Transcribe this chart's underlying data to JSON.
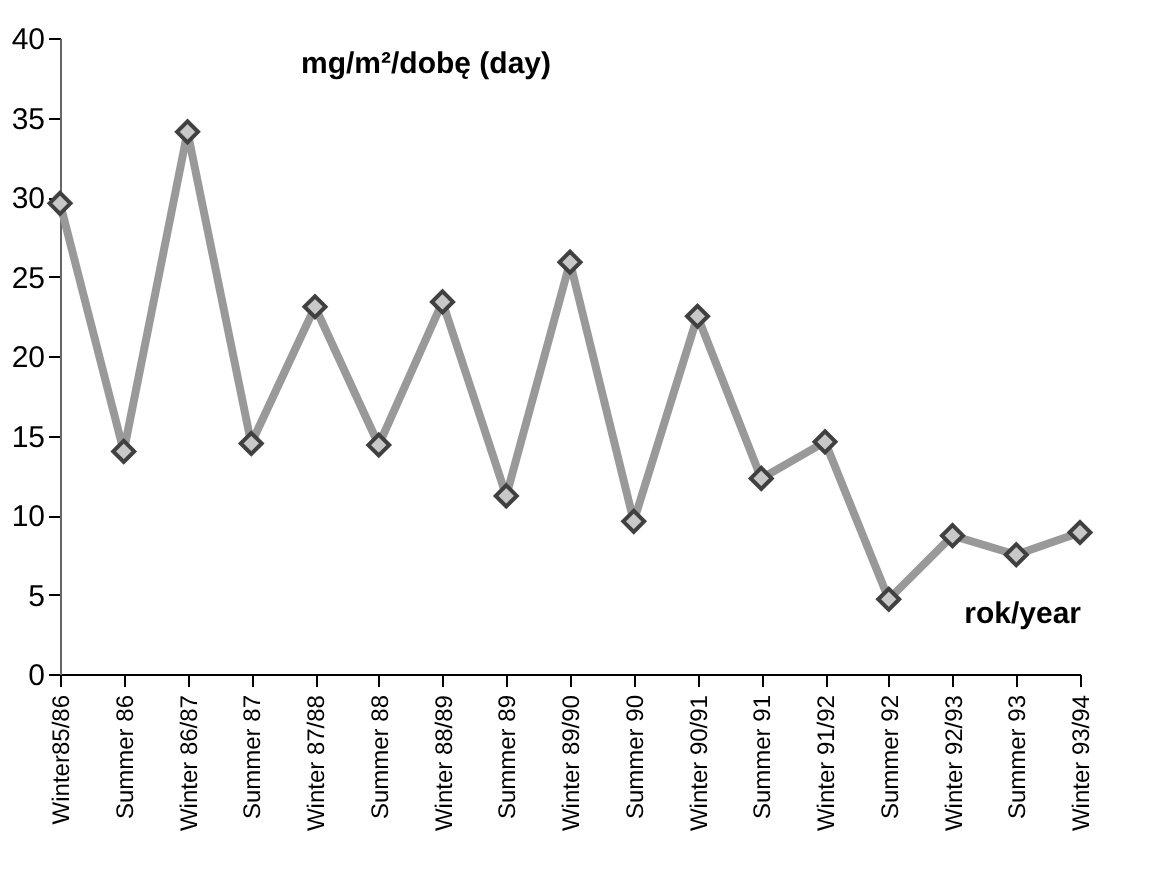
{
  "chart_data": {
    "type": "line",
    "ylabel": "mg/m²/dobę (day)",
    "xlabel": "rok/year",
    "categories": [
      "Winter85/86",
      "Summer 86",
      "Winter 86/87",
      "Summer 87",
      "Winter 87/88",
      "Summer 88",
      "Winter 88/89",
      "Summer 89",
      "Winter 89/90",
      "Summer 90",
      "Winter 90/91",
      "Summer 91",
      "Winter 91/92",
      "Summer 92",
      "Winter 92/93",
      "Summer 93",
      "Winter 93/94"
    ],
    "series": [
      {
        "color": "#999999",
        "values": [
          29.6,
          14.0,
          34.1,
          14.5,
          23.1,
          14.4,
          23.4,
          11.2,
          25.9,
          9.6,
          22.5,
          12.3,
          14.6,
          4.7,
          8.7,
          7.5,
          8.9
        ]
      }
    ],
    "ylim": [
      0,
      40
    ],
    "yticks": [
      0,
      5,
      10,
      15,
      20,
      25,
      30,
      35,
      40
    ],
    "grid": false,
    "marker": "diamond",
    "line_style": "solid"
  }
}
